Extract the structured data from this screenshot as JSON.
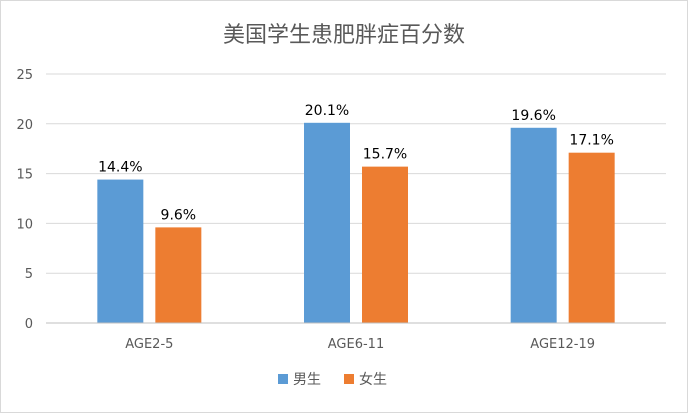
{
  "chart_data": {
    "type": "bar",
    "title": "美国学生患肥胖症百分数",
    "xlabel": "",
    "ylabel": "",
    "categories": [
      "AGE2-5",
      "AGE6-11",
      "AGE12-19"
    ],
    "ylim": [
      0,
      25
    ],
    "yticks": [
      0,
      5,
      10,
      15,
      20,
      25
    ],
    "grid": true,
    "legend_position": "bottom",
    "series": [
      {
        "name": "男生",
        "color": "#5B9BD5",
        "values": [
          14.4,
          20.1,
          19.6
        ],
        "labels": [
          "14.4%",
          "20.1%",
          "19.6%"
        ]
      },
      {
        "name": "女生",
        "color": "#ED7D31",
        "values": [
          9.6,
          15.7,
          17.1
        ],
        "labels": [
          "9.6%",
          "15.7%",
          "17.1%"
        ]
      }
    ]
  }
}
